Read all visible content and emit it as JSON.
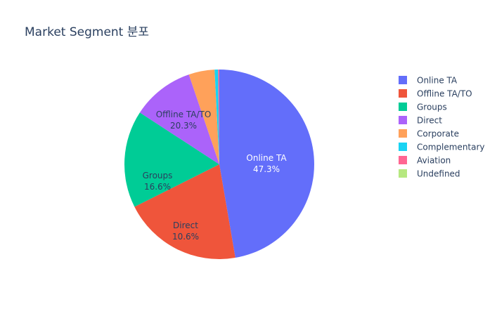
{
  "chart_data": {
    "type": "pie",
    "title": "Market Segment 분포",
    "categories": [
      "Online TA",
      "Offline TA/TO",
      "Groups",
      "Direct",
      "Corporate",
      "Complementary",
      "Aviation",
      "Undefined"
    ],
    "values": [
      47.3,
      20.3,
      16.6,
      10.6,
      4.4,
      0.6,
      0.2,
      0.0
    ],
    "value_unit": "%",
    "colors": [
      "#636efa",
      "#ef553b",
      "#00cc96",
      "#ab63fa",
      "#ffa15a",
      "#19d3f3",
      "#ff6692",
      "#b6e880"
    ],
    "label_colors": [
      "#ffffff",
      "#2a3f5f",
      "#2a3f5f",
      "#2a3f5f",
      "#2a3f5f",
      "#2a3f5f",
      "#2a3f5f",
      "#2a3f5f"
    ],
    "slice_labels": [
      {
        "name": "Online TA",
        "percent": "47.3%"
      },
      {
        "name": "Offline TA/TO",
        "percent": "20.3%"
      },
      {
        "name": "Groups",
        "percent": "16.6%"
      },
      {
        "name": "Direct",
        "percent": "10.6%"
      }
    ],
    "legend_placement": "right",
    "direction": "clockwise",
    "start_angle": "top"
  }
}
